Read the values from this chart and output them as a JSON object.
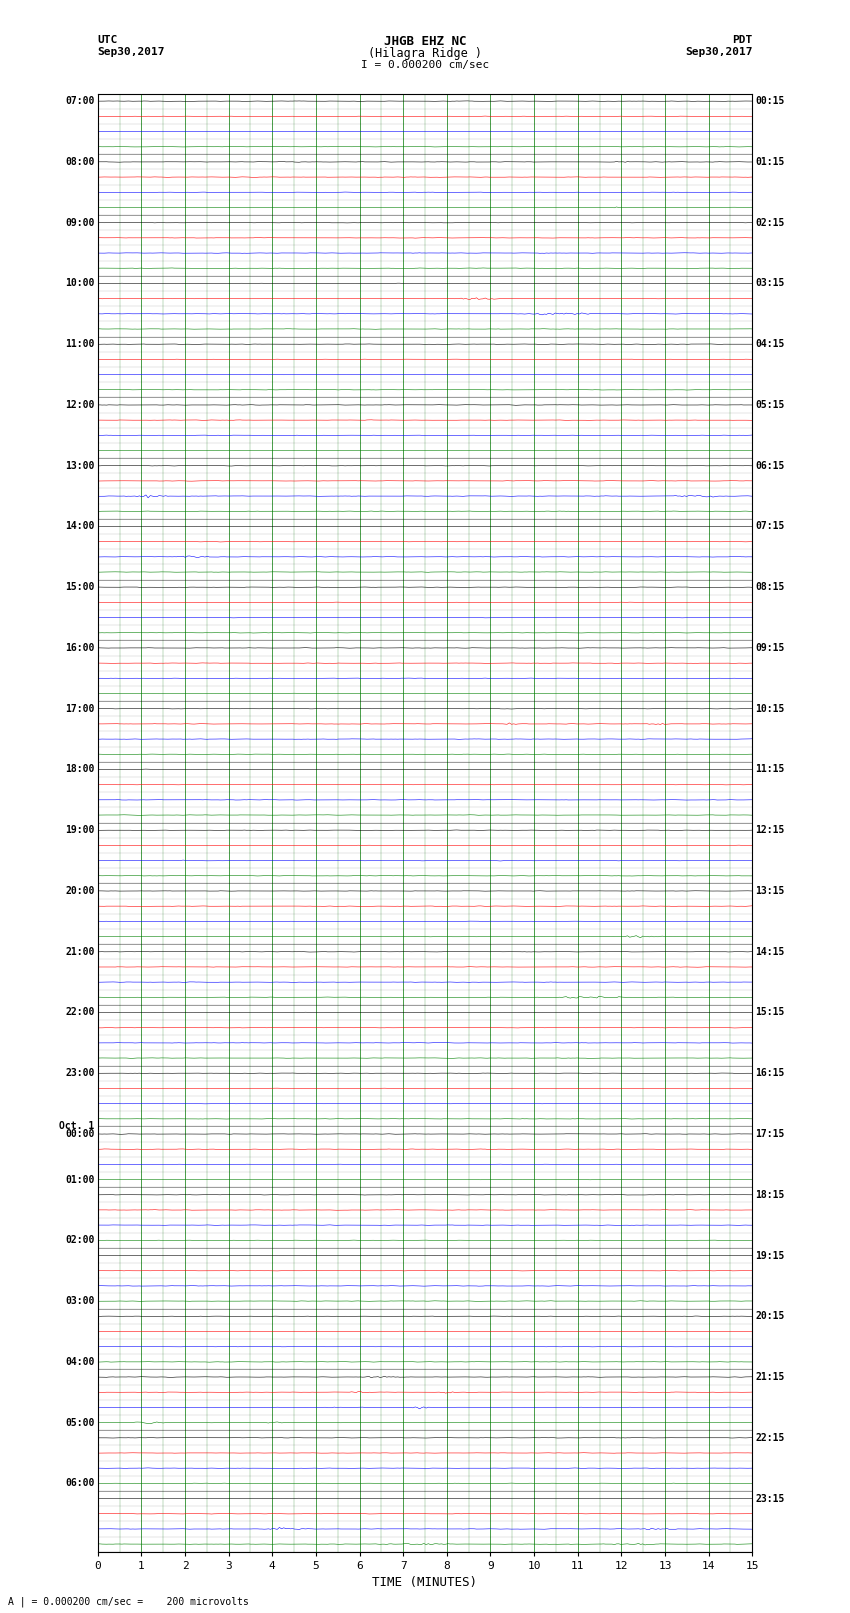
{
  "title_line1": "JHGB EHZ NC",
  "title_line2": "(Hilagra Ridge )",
  "scale_label": "I = 0.000200 cm/sec",
  "left_header_line1": "UTC",
  "left_header_line2": "Sep30,2017",
  "right_header_line1": "PDT",
  "right_header_line2": "Sep30,2017",
  "xlabel": "TIME (MINUTES)",
  "bottom_note": "A | = 0.000200 cm/sec =    200 microvolts",
  "xlim": [
    0,
    15
  ],
  "x_ticks": [
    0,
    1,
    2,
    3,
    4,
    5,
    6,
    7,
    8,
    9,
    10,
    11,
    12,
    13,
    14,
    15
  ],
  "num_traces": 96,
  "traces_per_hour": 4,
  "background_color": "#ffffff",
  "grid_color": "#007700",
  "trace_colors_cycle": [
    "black",
    "red",
    "blue",
    "green"
  ],
  "left_times": [
    "07:00",
    "",
    "",
    "",
    "08:00",
    "",
    "",
    "",
    "09:00",
    "",
    "",
    "",
    "10:00",
    "",
    "",
    "",
    "11:00",
    "",
    "",
    "",
    "12:00",
    "",
    "",
    "",
    "13:00",
    "",
    "",
    "",
    "14:00",
    "",
    "",
    "",
    "15:00",
    "",
    "",
    "",
    "16:00",
    "",
    "",
    "",
    "17:00",
    "",
    "",
    "",
    "18:00",
    "",
    "",
    "",
    "19:00",
    "",
    "",
    "",
    "20:00",
    "",
    "",
    "",
    "21:00",
    "",
    "",
    "",
    "22:00",
    "",
    "",
    "",
    "23:00",
    "",
    "",
    "",
    "Oct. 1",
    "00:00",
    "",
    "",
    "01:00",
    "",
    "",
    "",
    "02:00",
    "",
    "",
    "",
    "03:00",
    "",
    "",
    "",
    "04:00",
    "",
    "",
    "",
    "05:00",
    "",
    "",
    "",
    "06:00",
    "",
    "",
    ""
  ],
  "right_times": [
    "00:15",
    "",
    "",
    "",
    "01:15",
    "",
    "",
    "",
    "02:15",
    "",
    "",
    "",
    "03:15",
    "",
    "",
    "",
    "04:15",
    "",
    "",
    "",
    "05:15",
    "",
    "",
    "",
    "06:15",
    "",
    "",
    "",
    "07:15",
    "",
    "",
    "",
    "08:15",
    "",
    "",
    "",
    "09:15",
    "",
    "",
    "",
    "10:15",
    "",
    "",
    "",
    "11:15",
    "",
    "",
    "",
    "12:15",
    "",
    "",
    "",
    "13:15",
    "",
    "",
    "",
    "14:15",
    "",
    "",
    "",
    "15:15",
    "",
    "",
    "",
    "16:15",
    "",
    "",
    "",
    "17:15",
    "",
    "",
    "",
    "18:15",
    "",
    "",
    "",
    "19:15",
    "",
    "",
    "",
    "20:15",
    "",
    "",
    "",
    "21:15",
    "",
    "",
    "",
    "22:15",
    "",
    "",
    "",
    "23:15",
    "",
    "",
    ""
  ]
}
